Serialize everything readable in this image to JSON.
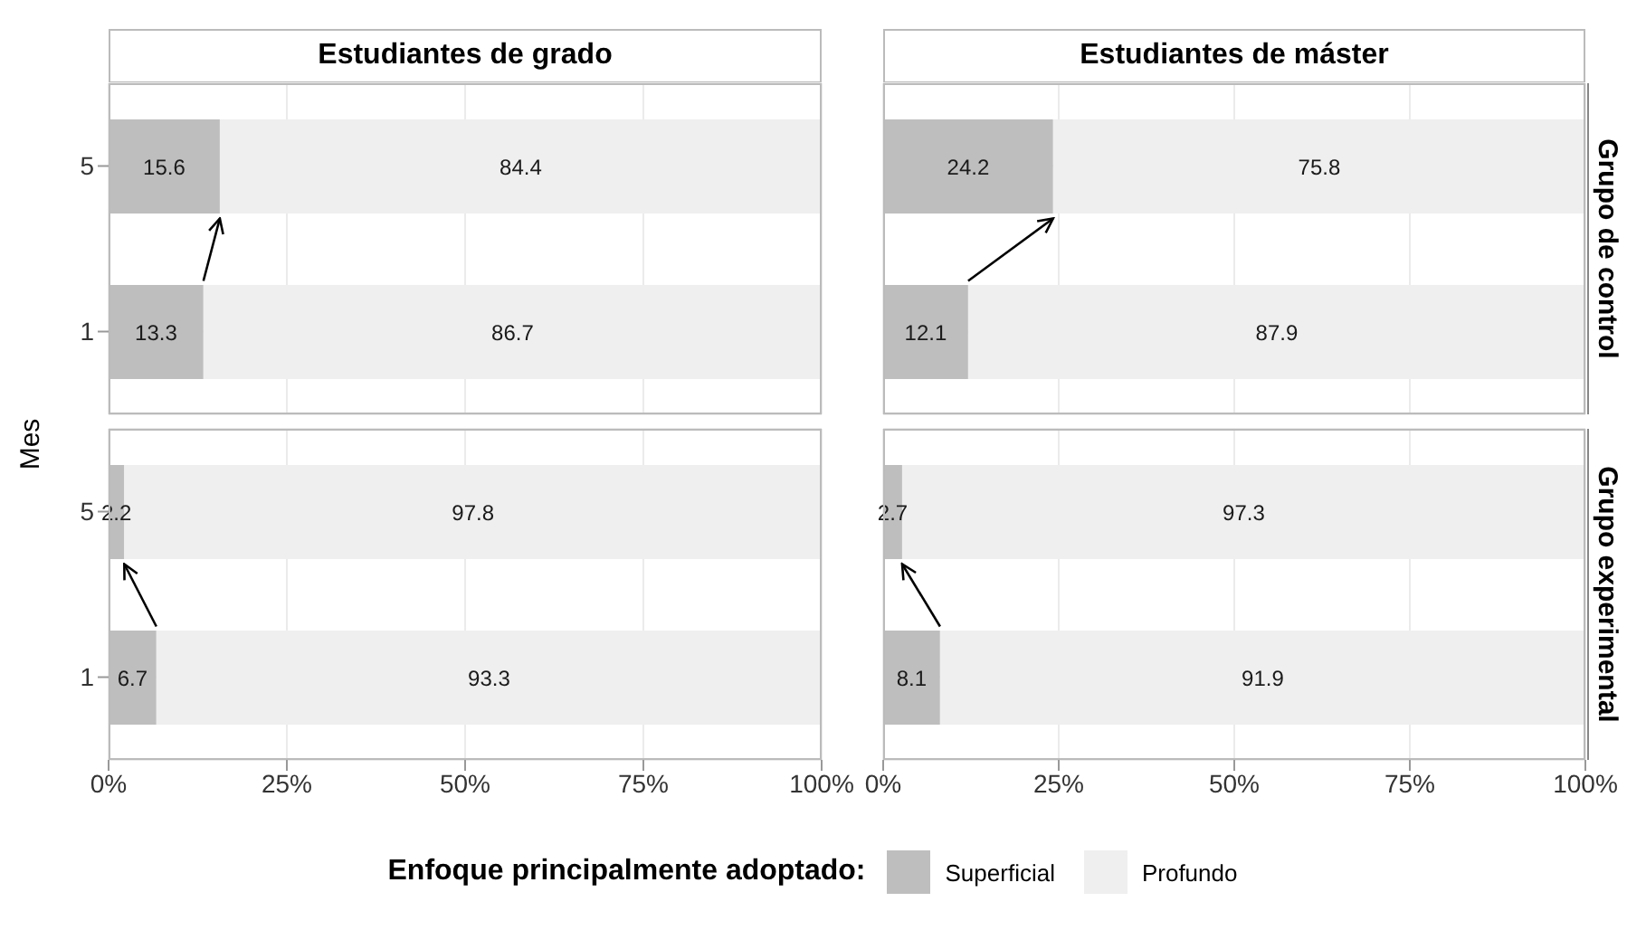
{
  "chart_data": [
    {
      "type": "bar",
      "orientation": "horizontal",
      "stacked": true,
      "title": "Estudiantes de grado",
      "ylabel": "Mes",
      "categories": [
        "5",
        "1"
      ],
      "legend": "bottom",
      "legend_title": "Enfoque principalmente adoptado:",
      "series": [
        {
          "name": "Superficial",
          "color": "#bebebe",
          "values": [
            15.6,
            13.3
          ]
        },
        {
          "name": "Profundo",
          "color": "#efefef",
          "values": [
            84.4,
            86.7
          ]
        }
      ],
      "xlim": [
        0,
        100
      ],
      "xticks": [
        0,
        25,
        50,
        75,
        100
      ],
      "data_labels": true,
      "grid": true,
      "tick_labels": "y"
    },
    {
      "type": "bar",
      "orientation": "horizontal",
      "stacked": true,
      "title": "Estudiantes de máster",
      "annotations": [
        "Grupo de control"
      ],
      "categories": [
        "5",
        "1"
      ],
      "series": [
        {
          "color": "#bebebe",
          "values": [
            24.2,
            12.1
          ]
        },
        {
          "color": "#efefef",
          "values": [
            75.8,
            87.9
          ]
        }
      ],
      "xlim": [
        0,
        100
      ],
      "xticks": [
        0,
        25,
        50,
        75,
        100
      ],
      "data_labels": true,
      "grid": true,
      "tick_labels": false
    },
    {
      "type": "bar",
      "orientation": "horizontal",
      "stacked": true,
      "categories": [
        "5",
        "1"
      ],
      "series": [
        {
          "color": "#bebebe",
          "values": [
            2.2,
            6.7
          ]
        },
        {
          "color": "#efefef",
          "values": [
            97.8,
            93.3
          ]
        }
      ],
      "xlim": [
        0,
        100
      ],
      "xticks": [
        {
          "value": 0,
          "label": "0%"
        },
        {
          "value": 25,
          "label": "25%"
        },
        {
          "value": 50,
          "label": "50%"
        },
        {
          "value": 75,
          "label": "75%"
        },
        {
          "value": 100,
          "label": "100%"
        }
      ],
      "data_labels": true,
      "grid": true
    },
    {
      "type": "bar",
      "orientation": "horizontal",
      "stacked": true,
      "annotations": [
        "Grupo experimental"
      ],
      "categories": [
        "5",
        "1"
      ],
      "series": [
        {
          "color": "#bebebe",
          "values": [
            2.7,
            8.1
          ]
        },
        {
          "color": "#efefef",
          "values": [
            97.3,
            91.9
          ]
        }
      ],
      "xlim": [
        0,
        100
      ],
      "xticks": [
        {
          "value": 0,
          "label": "0%"
        },
        {
          "value": 25,
          "label": "25%"
        },
        {
          "value": 50,
          "label": "50%"
        },
        {
          "value": 75,
          "label": "75%"
        },
        {
          "value": 100,
          "label": "100%"
        }
      ],
      "data_labels": true,
      "grid": true,
      "tick_labels": "x"
    }
  ]
}
